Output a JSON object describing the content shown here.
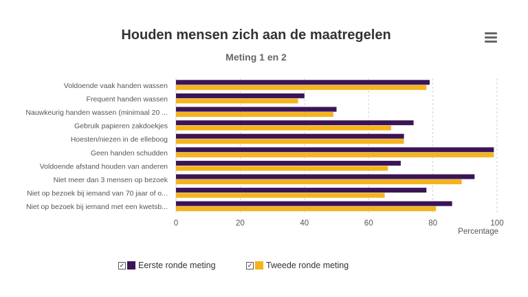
{
  "header": {
    "title": "Houden mensen zich aan de maatregelen",
    "subtitle": "Meting 1 en 2",
    "menu_icon": "hamburger-menu-icon"
  },
  "legend": [
    {
      "label": "Eerste ronde meting",
      "color": "#3b1456",
      "checked": true
    },
    {
      "label": "Tweede ronde meting",
      "color": "#f5b41c",
      "checked": true
    }
  ],
  "chart_data": {
    "type": "bar",
    "orientation": "horizontal",
    "title": "Houden mensen zich aan de maatregelen",
    "subtitle": "Meting 1 en 2",
    "xlabel": "Percentage",
    "ylabel": "",
    "xlim": [
      0,
      100
    ],
    "x_ticks": [
      0,
      20,
      40,
      60,
      80,
      100
    ],
    "grid": "vertical dashed",
    "legend_position": "bottom",
    "categories": [
      "Voldoende vaak handen wassen",
      "Frequent handen wassen",
      "Nauwkeurig handen wassen (minimaal 20 ...",
      "Gebruik papieren zakdoekjes",
      "Hoesten/niezen in de elleboog",
      "Geen handen schudden",
      "Voldoende afstand houden van anderen",
      "Niet meer dan 3 mensen op bezoek",
      "Niet op bezoek bij iemand van 70 jaar of o...",
      "Niet op bezoek bij iemand met een kwetsb..."
    ],
    "series": [
      {
        "name": "Eerste ronde meting",
        "color": "#3b1456",
        "values": [
          79,
          40,
          50,
          74,
          71,
          99,
          70,
          93,
          78,
          86
        ]
      },
      {
        "name": "Tweede ronde meting",
        "color": "#f5b41c",
        "values": [
          78,
          38,
          49,
          67,
          71,
          99,
          66,
          89,
          65,
          81
        ]
      }
    ]
  }
}
